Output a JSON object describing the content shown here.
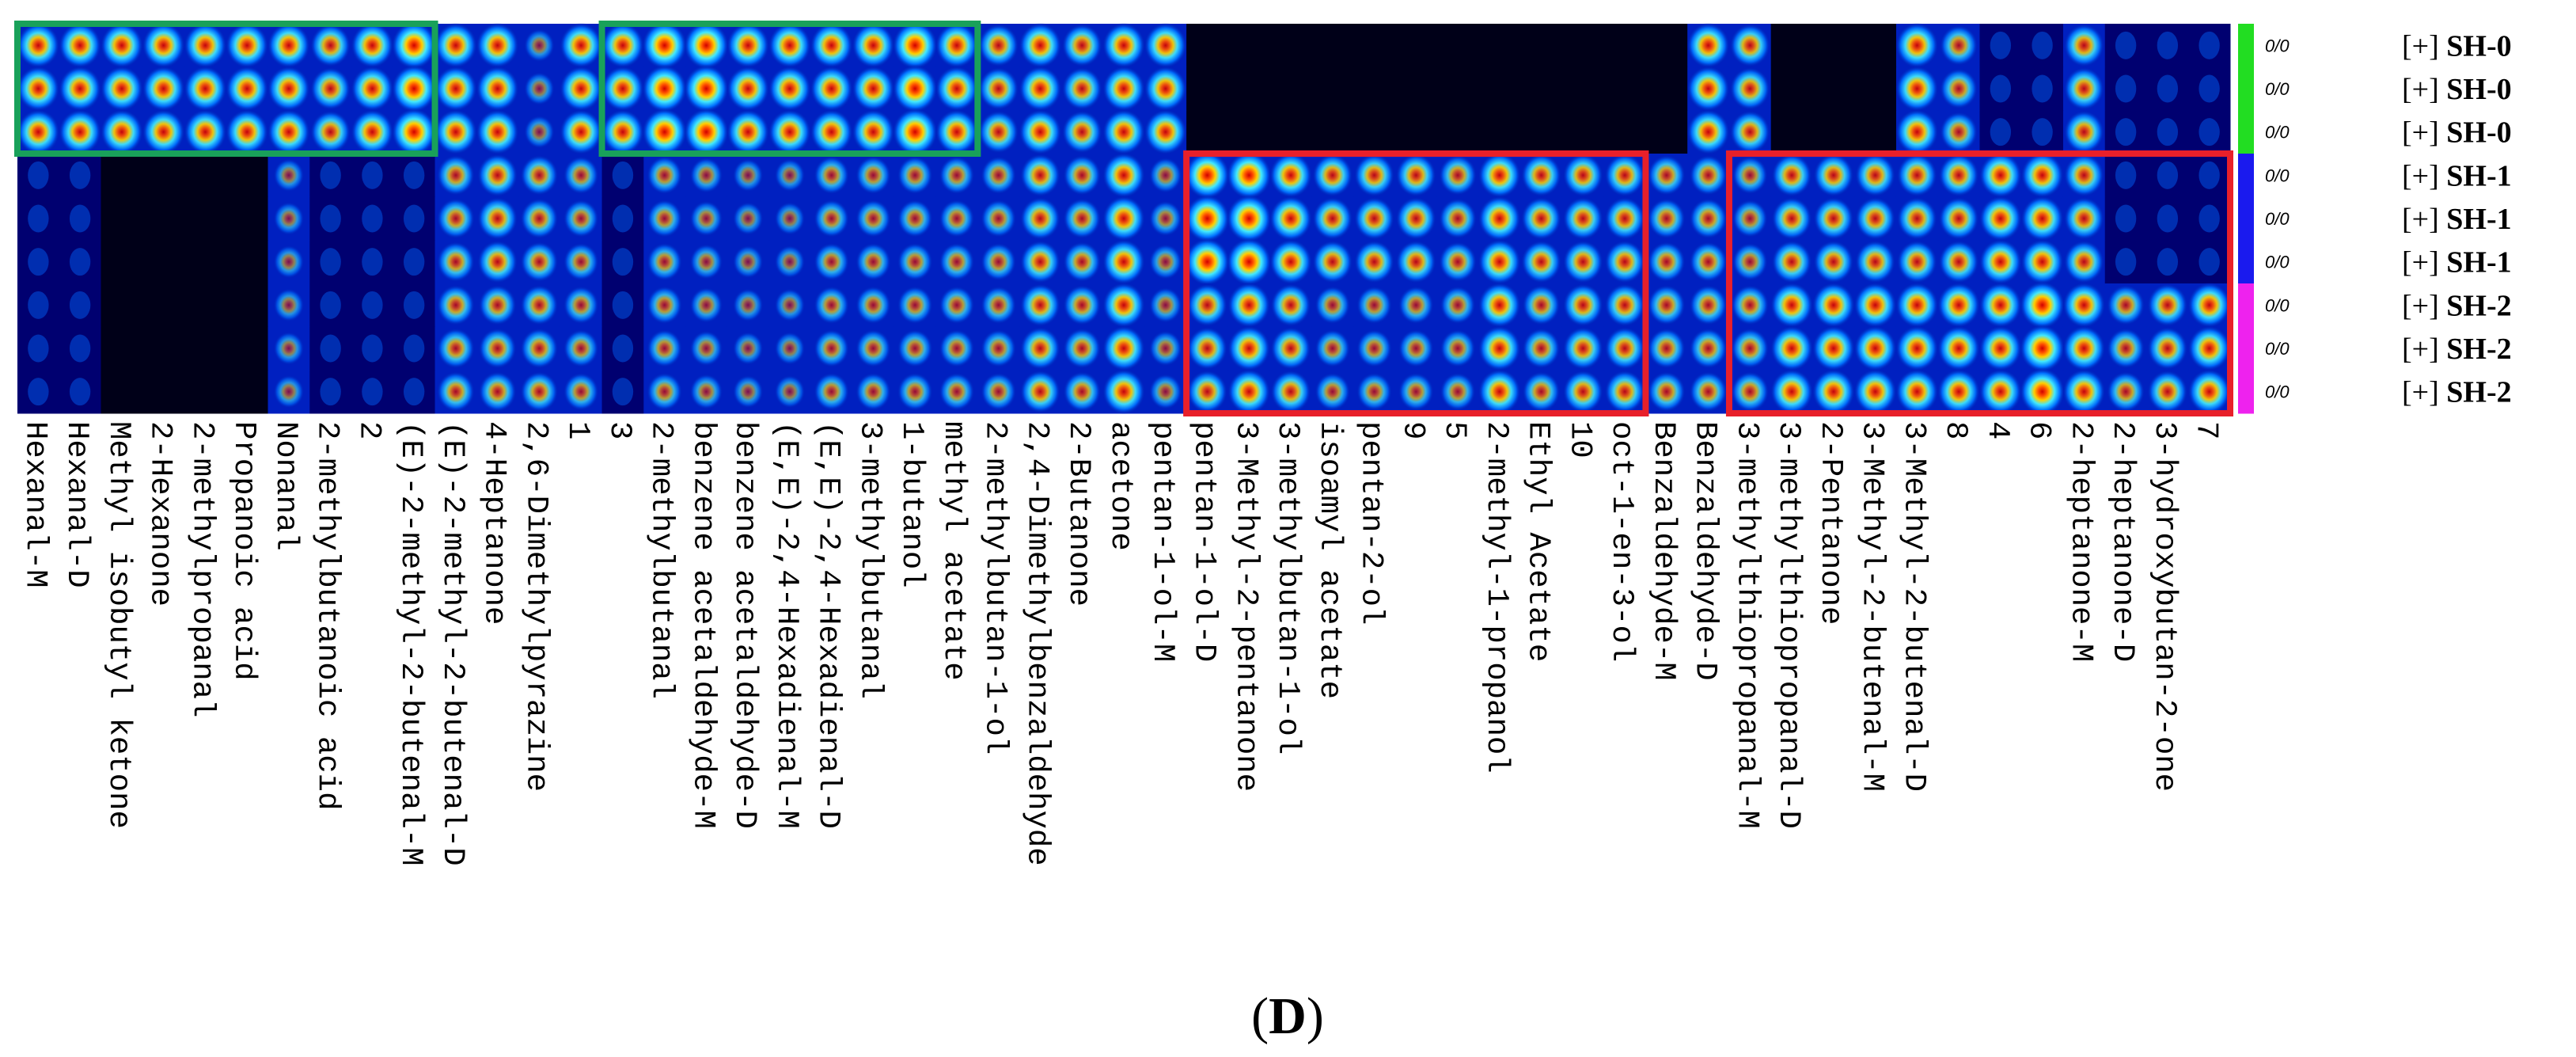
{
  "caption": {
    "open": "(",
    "letter": "D",
    "close": ")"
  },
  "chart_data": {
    "type": "heatmap",
    "title": "",
    "xlabel": "",
    "ylabel": "",
    "samples": [
      {
        "prefix": "[+]",
        "name": "SH-0",
        "ratio": "0/0",
        "group": "SH-0"
      },
      {
        "prefix": "[+]",
        "name": "SH-0",
        "ratio": "0/0",
        "group": "SH-0"
      },
      {
        "prefix": "[+]",
        "name": "SH-0",
        "ratio": "0/0",
        "group": "SH-0"
      },
      {
        "prefix": "[+]",
        "name": "SH-1",
        "ratio": "0/0",
        "group": "SH-1"
      },
      {
        "prefix": "[+]",
        "name": "SH-1",
        "ratio": "0/0",
        "group": "SH-1"
      },
      {
        "prefix": "[+]",
        "name": "SH-1",
        "ratio": "0/0",
        "group": "SH-1"
      },
      {
        "prefix": "[+]",
        "name": "SH-2",
        "ratio": "0/0",
        "group": "SH-2"
      },
      {
        "prefix": "[+]",
        "name": "SH-2",
        "ratio": "0/0",
        "group": "SH-2"
      },
      {
        "prefix": "[+]",
        "name": "SH-2",
        "ratio": "0/0",
        "group": "SH-2"
      }
    ],
    "group_colors": {
      "SH-0": "#22dd22",
      "SH-1": "#1a1aee",
      "SH-2": "#ee22ee"
    },
    "compounds": [
      "Hexanal-M",
      "Hexanal-D",
      "Methyl isobutyl ketone",
      "2-Hexanone",
      "2-methylpropanal",
      "Propanoic acid",
      "Nonanal",
      "2-methylbutanoic acid",
      "2",
      "(E)-2-methyl-2-butenal-M",
      "(E)-2-methyl-2-butenal-D",
      "4-Heptanone",
      "2,6-Dimethylpyrazine",
      "1",
      "3",
      "2-methylbutanal",
      "benzene acetaldehyde-M",
      "benzene acetaldehyde-D",
      "(E,E)-2,4-Hexadienal-M",
      "(E,E)-2,4-Hexadienal-D",
      "3-methylbutanal",
      "1-butanol",
      "methyl acetate",
      "2-methylbutan-1-ol",
      "2,4-Dimethylbenzaldehyde",
      "2-Butanone",
      "acetone",
      "pentan-1-ol-M",
      "pentan-1-ol-D",
      "3-Methyl-2-pentanone",
      "3-methylbutan-1-ol",
      "isoamyl acetate",
      "pentan-2-ol",
      "9",
      "5",
      "2-methyl-1-propanol",
      "Ethyl Acetate",
      "10",
      "oct-1-en-3-ol",
      "Benzaldehyde-M",
      "Benzaldehyde-D",
      "3-methylthiopropanal-M",
      "3-methylthiopropanal-D",
      "2-Pentanone",
      "3-Methyl-2-butenal-M",
      "3-Methyl-2-butenal-D",
      "8",
      "4",
      "6",
      "2-heptanone-M",
      "2-heptanone-D",
      "3-hydroxybutan-2-one",
      "7"
    ],
    "intensity": [
      [
        8,
        8,
        8,
        8,
        8,
        8,
        8,
        7,
        8,
        9,
        8,
        8,
        3,
        8,
        8,
        9,
        9,
        8,
        8,
        8,
        8,
        9,
        8,
        7,
        8,
        7,
        8,
        8,
        1,
        1,
        1,
        1,
        1,
        1,
        1,
        1,
        1,
        1,
        1,
        1,
        8,
        7,
        1,
        1,
        1,
        8,
        6,
        2,
        2,
        7,
        2,
        2,
        2
      ],
      [
        8,
        8,
        8,
        8,
        8,
        8,
        8,
        7,
        8,
        9,
        8,
        8,
        3,
        8,
        8,
        9,
        9,
        8,
        8,
        8,
        8,
        9,
        8,
        7,
        8,
        7,
        8,
        8,
        1,
        1,
        1,
        1,
        1,
        1,
        1,
        1,
        1,
        1,
        1,
        1,
        8,
        7,
        1,
        1,
        1,
        8,
        6,
        2,
        2,
        7,
        2,
        2,
        2
      ],
      [
        8,
        8,
        8,
        8,
        8,
        8,
        8,
        7,
        8,
        9,
        8,
        8,
        3,
        8,
        8,
        9,
        9,
        8,
        8,
        8,
        8,
        9,
        8,
        7,
        8,
        7,
        8,
        8,
        1,
        1,
        1,
        1,
        1,
        1,
        1,
        1,
        1,
        1,
        1,
        1,
        8,
        7,
        1,
        1,
        1,
        8,
        6,
        2,
        2,
        7,
        2,
        2,
        2
      ],
      [
        2,
        2,
        1,
        1,
        1,
        1,
        3,
        2,
        2,
        2,
        6,
        7,
        6,
        5,
        2,
        5,
        4,
        3,
        3,
        5,
        5,
        5,
        5,
        5,
        7,
        6,
        8,
        4,
        9,
        9,
        8,
        7,
        7,
        7,
        6,
        8,
        7,
        7,
        7,
        6,
        6,
        5,
        7,
        7,
        7,
        7,
        7,
        8,
        8,
        7,
        2,
        2,
        2
      ],
      [
        2,
        2,
        1,
        1,
        1,
        1,
        3,
        2,
        2,
        2,
        6,
        7,
        6,
        5,
        2,
        5,
        4,
        3,
        3,
        5,
        5,
        5,
        5,
        5,
        7,
        6,
        8,
        4,
        9,
        9,
        8,
        7,
        7,
        7,
        6,
        8,
        7,
        7,
        7,
        6,
        6,
        5,
        7,
        7,
        7,
        7,
        7,
        8,
        8,
        7,
        2,
        2,
        2
      ],
      [
        2,
        2,
        1,
        1,
        1,
        1,
        3,
        2,
        2,
        2,
        6,
        7,
        6,
        5,
        2,
        5,
        4,
        3,
        3,
        5,
        5,
        5,
        5,
        5,
        7,
        6,
        8,
        4,
        9,
        9,
        8,
        7,
        7,
        7,
        6,
        8,
        7,
        7,
        7,
        6,
        6,
        5,
        7,
        7,
        7,
        7,
        7,
        8,
        8,
        7,
        2,
        2,
        2
      ],
      [
        2,
        2,
        1,
        1,
        1,
        1,
        3,
        2,
        2,
        2,
        6,
        6,
        6,
        5,
        2,
        5,
        4,
        3,
        3,
        5,
        5,
        5,
        5,
        5,
        7,
        6,
        8,
        4,
        7,
        8,
        7,
        5,
        5,
        5,
        5,
        8,
        6,
        7,
        7,
        6,
        6,
        6,
        8,
        8,
        8,
        8,
        8,
        8,
        9,
        8,
        6,
        7,
        8
      ],
      [
        2,
        2,
        1,
        1,
        1,
        1,
        3,
        2,
        2,
        2,
        6,
        6,
        6,
        5,
        2,
        5,
        4,
        3,
        3,
        5,
        5,
        5,
        5,
        5,
        7,
        6,
        8,
        4,
        7,
        8,
        7,
        5,
        5,
        5,
        5,
        8,
        6,
        7,
        7,
        6,
        6,
        6,
        8,
        8,
        8,
        8,
        8,
        8,
        9,
        8,
        6,
        7,
        8
      ],
      [
        2,
        2,
        1,
        1,
        1,
        1,
        3,
        2,
        2,
        2,
        6,
        6,
        6,
        5,
        2,
        5,
        4,
        3,
        3,
        5,
        5,
        5,
        5,
        5,
        7,
        6,
        8,
        4,
        7,
        8,
        7,
        5,
        5,
        5,
        5,
        8,
        6,
        7,
        7,
        6,
        6,
        6,
        8,
        8,
        8,
        8,
        8,
        8,
        9,
        8,
        6,
        7,
        8
      ]
    ],
    "intensity_scale": [
      0,
      9
    ],
    "colormap": [
      "#000018",
      "#000070",
      "#0020c0",
      "#0066ff",
      "#00c0ff",
      "#40e8ff",
      "#ffff40",
      "#ffb000",
      "#ff4000",
      "#d00000"
    ],
    "highlight_boxes": [
      {
        "color": "#19a15a",
        "rows": [
          0,
          2
        ],
        "cols": [
          0,
          9
        ]
      },
      {
        "color": "#19a15a",
        "rows": [
          0,
          2
        ],
        "cols": [
          14,
          22
        ]
      },
      {
        "color": "#e8202a",
        "rows": [
          3,
          8
        ],
        "cols": [
          28,
          38
        ]
      },
      {
        "color": "#e8202a",
        "rows": [
          3,
          8
        ],
        "cols": [
          41,
          52
        ]
      }
    ]
  }
}
